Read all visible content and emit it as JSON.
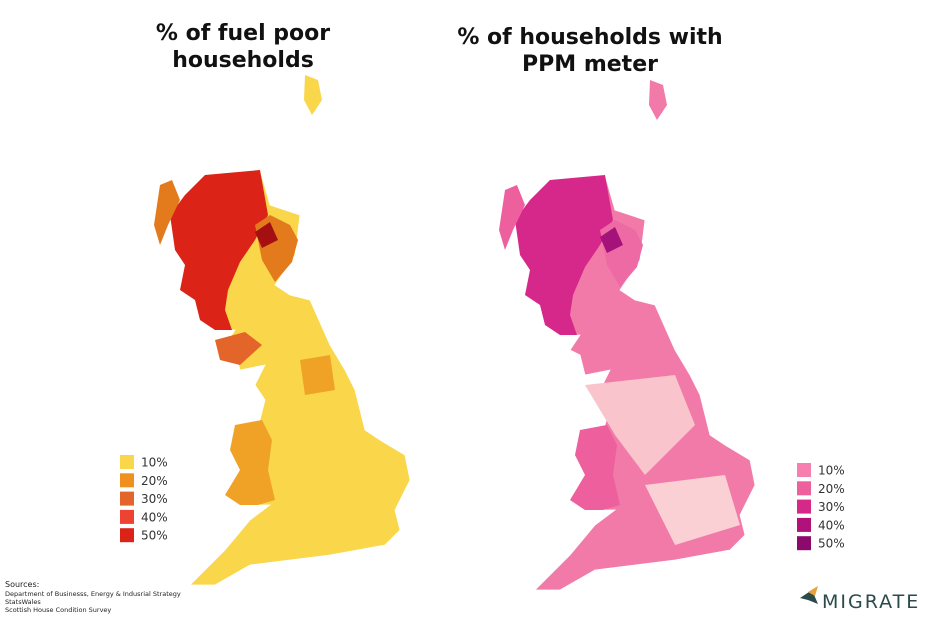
{
  "maps": [
    {
      "title_lines": [
        "% of fuel poor",
        "households"
      ],
      "legend": [
        {
          "label": "10%",
          "color": "#f9d64a"
        },
        {
          "label": "20%",
          "color": "#f0901e"
        },
        {
          "label": "30%",
          "color": "#e4652a"
        },
        {
          "label": "40%",
          "color": "#ee4232"
        },
        {
          "label": "50%",
          "color": "#dc2318"
        }
      ]
    },
    {
      "title_lines": [
        "% of households with",
        "PPM meter"
      ],
      "legend": [
        {
          "label": "10%",
          "color": "#f57fae"
        },
        {
          "label": "20%",
          "color": "#ee5f9e"
        },
        {
          "label": "30%",
          "color": "#d6288a"
        },
        {
          "label": "40%",
          "color": "#b0127a"
        },
        {
          "label": "50%",
          "color": "#8b0a6c"
        }
      ]
    }
  ],
  "sources": [
    "Sources:",
    "Department of Businesss, Energy & Indusrial Strategy",
    "StatsWales",
    "Scottish House Condition Survey"
  ],
  "logo": "MIGRATE"
}
